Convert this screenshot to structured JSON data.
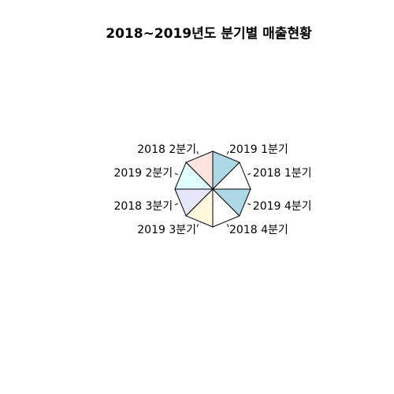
{
  "chart_data": {
    "type": "pie",
    "title": "2018~2019년도 분기별 매출현황",
    "slices": [
      {
        "label": "2018 1분기",
        "value": 1,
        "color": "#ffffff"
      },
      {
        "label": "2019 1분기",
        "value": 1,
        "color": "#add8e6"
      },
      {
        "label": "2018 2분기",
        "value": 1,
        "color": "#ffe4e1"
      },
      {
        "label": "2019 2분기",
        "value": 1,
        "color": "#e0ffff"
      },
      {
        "label": "2018 3분기",
        "value": 1,
        "color": "#e6e6fa"
      },
      {
        "label": "2019 3분기",
        "value": 1,
        "color": "#fff8dc"
      },
      {
        "label": "2018 4분기",
        "value": 1,
        "color": "#ffffff"
      },
      {
        "label": "2019 4분기",
        "value": 1,
        "color": "#add8e6"
      }
    ]
  }
}
